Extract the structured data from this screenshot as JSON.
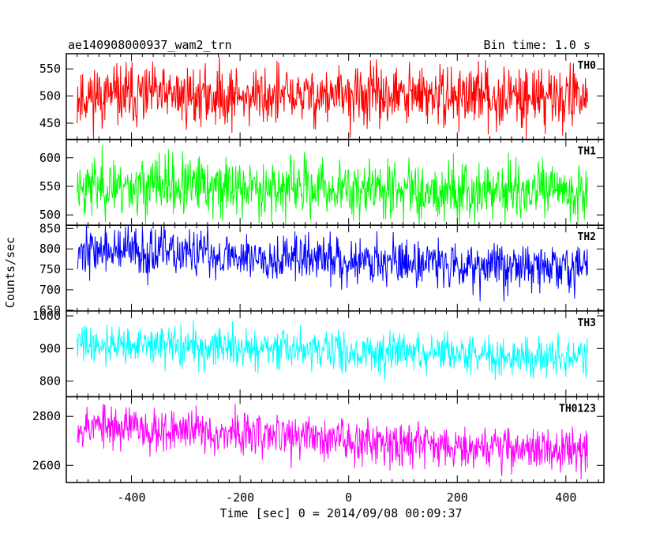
{
  "header": {
    "title": "ae140908000937_wam2_trn",
    "bin_time": "Bin time: 1.0 s"
  },
  "axes": {
    "ylabel": "Counts/sec",
    "xlabel": "Time [sec] 0 = 2014/09/08 00:09:37"
  },
  "chart_data": {
    "type": "line",
    "title": "ae140908000937_wam2_trn",
    "xlabel": "Time [sec] 0 = 2014/09/08 00:09:37",
    "ylabel": "Counts/sec",
    "xlim": [
      -520,
      470
    ],
    "x_range": [
      -500,
      440
    ],
    "bin_time_s": 1.0,
    "xticks": [
      -400,
      -200,
      0,
      200,
      400
    ],
    "panels": [
      {
        "name": "TH0",
        "color": "#ff0000",
        "ylim": [
          420,
          578
        ],
        "yticks": [
          450,
          500,
          550
        ],
        "level_start": 500,
        "level_end": 500,
        "noise": 28,
        "seed": 11
      },
      {
        "name": "TH1",
        "color": "#00ff00",
        "ylim": [
          482,
          632
        ],
        "yticks": [
          500,
          550,
          600
        ],
        "level_start": 552,
        "level_end": 540,
        "noise": 26,
        "seed": 23
      },
      {
        "name": "TH2",
        "color": "#0000ff",
        "ylim": [
          648,
          858
        ],
        "yticks": [
          650,
          700,
          750,
          800,
          850
        ],
        "level_start": 798,
        "level_end": 752,
        "noise": 30,
        "seed": 37
      },
      {
        "name": "TH3",
        "color": "#00ffff",
        "ylim": [
          752,
          1015
        ],
        "yticks": [
          800,
          900,
          1000
        ],
        "level_start": 915,
        "level_end": 870,
        "noise": 30,
        "seed": 41
      },
      {
        "name": "TH0123",
        "color": "#ff00ff",
        "ylim": [
          2530,
          2880
        ],
        "yticks": [
          2600,
          2800
        ],
        "level_start": 2765,
        "level_end": 2655,
        "noise": 45,
        "seed": 53
      }
    ]
  }
}
